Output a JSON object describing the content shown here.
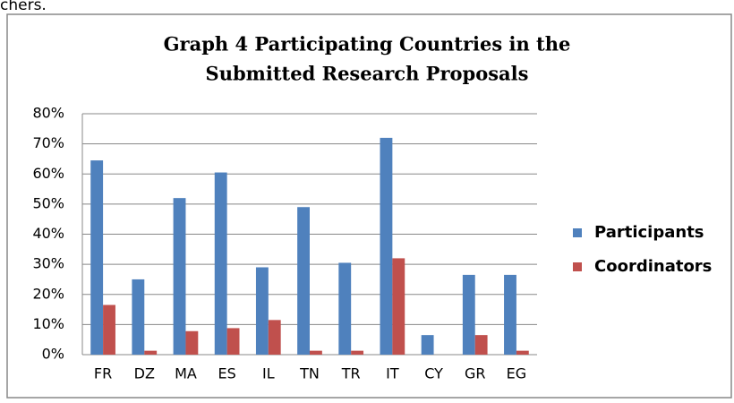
{
  "fragment": "chers.",
  "chart_data": {
    "type": "bar",
    "title": [
      "Graph 4  Participating Countries in the",
      "Submitted Research Proposals"
    ],
    "categories": [
      "FR",
      "DZ",
      "MA",
      "ES",
      "IL",
      "TN",
      "TR",
      "IT",
      "CY",
      "GR",
      "EG"
    ],
    "series": [
      {
        "name": "Participants",
        "color": "#4f81bd",
        "values": [
          64.5,
          25,
          52,
          60.5,
          29,
          49,
          30.5,
          72,
          6.5,
          26.5,
          26.5
        ]
      },
      {
        "name": "Coordinators",
        "color": "#c0504d",
        "values": [
          16.5,
          1.3,
          7.8,
          8.8,
          11.5,
          1.3,
          1.3,
          32,
          0,
          6.5,
          1.3
        ]
      }
    ],
    "ylim": [
      0,
      80
    ],
    "yticks": [
      {
        "value": 0,
        "label": "0%"
      },
      {
        "value": 10,
        "label": "10%"
      },
      {
        "value": 20,
        "label": "20%"
      },
      {
        "value": 30,
        "label": "30%"
      },
      {
        "value": 40,
        "label": "40%"
      },
      {
        "value": 50,
        "label": "50%"
      },
      {
        "value": 60,
        "label": "60%"
      },
      {
        "value": 70,
        "label": "70%"
      },
      {
        "value": 80,
        "label": "80%"
      }
    ],
    "grid": true,
    "legend": "right"
  }
}
